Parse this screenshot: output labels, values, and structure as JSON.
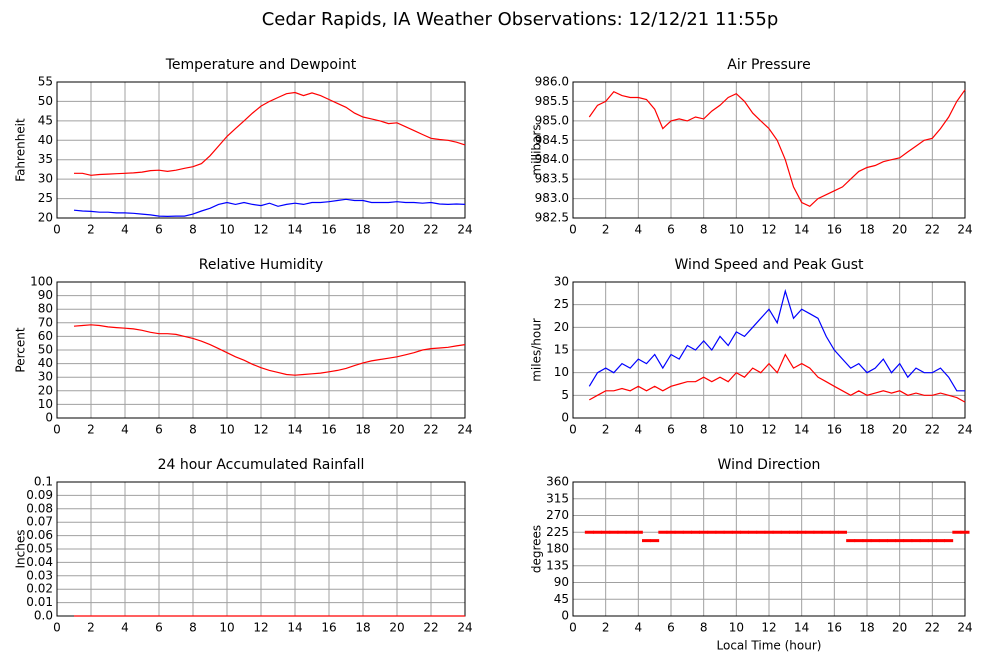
{
  "title": "Cedar Rapids, IA Weather Observations: 12/12/21 11:55p",
  "chart_data": [
    {
      "type": "line",
      "title": "Temperature and Dewpoint",
      "ylabel": "Fahrenheit",
      "xlim": [
        0,
        24
      ],
      "xticks": [
        0,
        2,
        4,
        6,
        8,
        10,
        12,
        14,
        16,
        18,
        20,
        22,
        24
      ],
      "ylim": [
        20,
        55
      ],
      "yticks": [
        20,
        25,
        30,
        35,
        40,
        45,
        50,
        55
      ],
      "grid": true,
      "x": [
        1,
        1.5,
        2,
        2.5,
        3,
        3.5,
        4,
        4.5,
        5,
        5.5,
        6,
        6.5,
        7,
        7.5,
        8,
        8.5,
        9,
        9.5,
        10,
        10.5,
        11,
        11.5,
        12,
        12.5,
        13,
        13.5,
        14,
        14.5,
        15,
        15.5,
        16,
        16.5,
        17,
        17.5,
        18,
        18.5,
        19,
        19.5,
        20,
        20.5,
        21,
        21.5,
        22,
        22.5,
        23,
        23.5,
        24
      ],
      "series": [
        {
          "color": "#ff0000",
          "values": [
            31.5,
            31.5,
            31,
            31.2,
            31.3,
            31.4,
            31.5,
            31.6,
            31.8,
            32.2,
            32.3,
            32,
            32.3,
            32.8,
            33.2,
            34,
            36,
            38.5,
            41,
            43,
            45,
            47,
            48.8,
            50,
            51,
            52,
            52.3,
            51.5,
            52.2,
            51.5,
            50.5,
            49.5,
            48.5,
            47,
            46,
            45.5,
            45,
            44.3,
            44.5,
            43.5,
            42.5,
            41.5,
            40.5,
            40.2,
            40,
            39.5,
            38.8
          ]
        },
        {
          "color": "#0000ff",
          "values": [
            22,
            21.8,
            21.7,
            21.5,
            21.5,
            21.3,
            21.3,
            21.2,
            21,
            20.8,
            20.5,
            20.4,
            20.5,
            20.5,
            21,
            21.8,
            22.5,
            23.5,
            24,
            23.5,
            24,
            23.5,
            23.2,
            23.8,
            23,
            23.5,
            23.8,
            23.5,
            24,
            24,
            24.2,
            24.5,
            24.8,
            24.5,
            24.5,
            24,
            24,
            24,
            24.2,
            24,
            24,
            23.8,
            24,
            23.6,
            23.5,
            23.6,
            23.5
          ]
        }
      ]
    },
    {
      "type": "line",
      "title": "Air Pressure",
      "ylabel": "millibars",
      "xlim": [
        0,
        24
      ],
      "xticks": [
        0,
        2,
        4,
        6,
        8,
        10,
        12,
        14,
        16,
        18,
        20,
        22,
        24
      ],
      "ylim": [
        982.5,
        986
      ],
      "yticks": [
        982.5,
        {
          "value": 983,
          "label": "983.0"
        },
        983.5,
        {
          "value": 984,
          "label": "984.0"
        },
        984.5,
        {
          "value": 985,
          "label": "985.0"
        },
        985.5,
        {
          "value": 986,
          "label": "986.0"
        }
      ],
      "grid": true,
      "x": [
        1,
        1.5,
        2,
        2.5,
        3,
        3.5,
        4,
        4.5,
        5,
        5.5,
        6,
        6.5,
        7,
        7.5,
        8,
        8.5,
        9,
        9.5,
        10,
        10.5,
        11,
        11.5,
        12,
        12.5,
        13,
        13.5,
        14,
        14.5,
        15,
        15.5,
        16,
        16.5,
        17,
        17.5,
        18,
        18.5,
        19,
        19.5,
        20,
        20.5,
        21,
        21.5,
        22,
        22.5,
        23,
        23.5,
        24
      ],
      "series": [
        {
          "color": "#ff0000",
          "values": [
            985.1,
            985.4,
            985.5,
            985.75,
            985.65,
            985.6,
            985.6,
            985.55,
            985.3,
            984.8,
            985.0,
            985.05,
            985.0,
            985.1,
            985.05,
            985.25,
            985.4,
            985.6,
            985.7,
            985.5,
            985.2,
            985.0,
            984.8,
            984.5,
            984.0,
            983.3,
            982.9,
            982.8,
            983.0,
            983.1,
            983.2,
            983.3,
            983.5,
            983.7,
            983.8,
            983.85,
            983.95,
            984.0,
            984.05,
            984.2,
            984.35,
            984.5,
            984.55,
            984.8,
            985.1,
            985.5,
            985.8
          ]
        }
      ]
    },
    {
      "type": "line",
      "title": "Relative Humidity",
      "ylabel": "Percent",
      "xlim": [
        0,
        24
      ],
      "xticks": [
        0,
        2,
        4,
        6,
        8,
        10,
        12,
        14,
        16,
        18,
        20,
        22,
        24
      ],
      "ylim": [
        0,
        100
      ],
      "yticks": [
        0,
        10,
        20,
        30,
        40,
        50,
        60,
        70,
        80,
        90,
        100
      ],
      "grid": true,
      "x": [
        1,
        1.5,
        2,
        2.5,
        3,
        3.5,
        4,
        4.5,
        5,
        5.5,
        6,
        6.5,
        7,
        7.5,
        8,
        8.5,
        9,
        9.5,
        10,
        10.5,
        11,
        11.5,
        12,
        12.5,
        13,
        13.5,
        14,
        14.5,
        15,
        15.5,
        16,
        16.5,
        17,
        17.5,
        18,
        18.5,
        19,
        19.5,
        20,
        20.5,
        21,
        21.5,
        22,
        22.5,
        23,
        23.5,
        24
      ],
      "series": [
        {
          "color": "#ff0000",
          "values": [
            67.5,
            68,
            68.5,
            68,
            67,
            66.5,
            66,
            65.5,
            64.5,
            63,
            62,
            62,
            61.5,
            60,
            58.5,
            56.5,
            54,
            51,
            48,
            45,
            42.5,
            39.5,
            37,
            35,
            33.5,
            32,
            31.5,
            32,
            32.5,
            33,
            34,
            35,
            36.5,
            38.5,
            40.5,
            42,
            43,
            44,
            45,
            46.5,
            48,
            50,
            51,
            51.5,
            52,
            53,
            54
          ]
        }
      ]
    },
    {
      "type": "line",
      "title": "Wind Speed and Peak Gust",
      "ylabel": "miles/hour",
      "xlim": [
        0,
        24
      ],
      "xticks": [
        0,
        2,
        4,
        6,
        8,
        10,
        12,
        14,
        16,
        18,
        20,
        22,
        24
      ],
      "ylim": [
        0,
        30
      ],
      "yticks": [
        0,
        5,
        10,
        15,
        20,
        25,
        30
      ],
      "grid": true,
      "x": [
        1,
        1.5,
        2,
        2.5,
        3,
        3.5,
        4,
        4.5,
        5,
        5.5,
        6,
        6.5,
        7,
        7.5,
        8,
        8.5,
        9,
        9.5,
        10,
        10.5,
        11,
        11.5,
        12,
        12.5,
        13,
        13.5,
        14,
        14.5,
        15,
        15.5,
        16,
        16.5,
        17,
        17.5,
        18,
        18.5,
        19,
        19.5,
        20,
        20.5,
        21,
        21.5,
        22,
        22.5,
        23,
        23.5,
        24
      ],
      "series": [
        {
          "color": "#0000ff",
          "values": [
            7,
            10,
            11,
            10,
            12,
            11,
            13,
            12,
            14,
            11,
            14,
            13,
            16,
            15,
            17,
            15,
            18,
            16,
            19,
            18,
            20,
            22,
            24,
            21,
            28,
            22,
            24,
            23,
            22,
            18,
            15,
            13,
            11,
            12,
            10,
            11,
            13,
            10,
            12,
            9,
            11,
            10,
            10,
            11,
            9,
            6,
            6
          ]
        },
        {
          "color": "#ff0000",
          "values": [
            4,
            5,
            6,
            6,
            6.5,
            6,
            7,
            6,
            7,
            6,
            7,
            7.5,
            8,
            8,
            9,
            8,
            9,
            8,
            10,
            9,
            11,
            10,
            12,
            10,
            14,
            11,
            12,
            11,
            9,
            8,
            7,
            6,
            5,
            6,
            5,
            5.5,
            6,
            5.5,
            6,
            5,
            5.5,
            5,
            5,
            5.5,
            5,
            4.5,
            3.5
          ]
        }
      ]
    },
    {
      "type": "line",
      "title": "24 hour Accumulated Rainfall",
      "ylabel": "Inches",
      "xlim": [
        0,
        24
      ],
      "xticks": [
        0,
        2,
        4,
        6,
        8,
        10,
        12,
        14,
        16,
        18,
        20,
        22,
        24
      ],
      "ylim": [
        0,
        0.1
      ],
      "yticks": [
        {
          "value": 0,
          "label": "0.0"
        },
        0.01,
        0.02,
        0.03,
        0.04,
        0.05,
        0.06,
        0.07,
        0.08,
        0.09,
        0.1
      ],
      "grid": true,
      "x": [
        1,
        1.5,
        2,
        2.5,
        3,
        3.5,
        4,
        4.5,
        5,
        5.5,
        6,
        6.5,
        7,
        7.5,
        8,
        8.5,
        9,
        9.5,
        10,
        10.5,
        11,
        11.5,
        12,
        12.5,
        13,
        13.5,
        14,
        14.5,
        15,
        15.5,
        16,
        16.5,
        17,
        17.5,
        18,
        18.5,
        19,
        19.5,
        20,
        20.5,
        21,
        21.5,
        22,
        22.5,
        23,
        23.5,
        24
      ],
      "series": [
        {
          "color": "#ff0000",
          "values": [
            0,
            0,
            0,
            0,
            0,
            0,
            0,
            0,
            0,
            0,
            0,
            0,
            0,
            0,
            0,
            0,
            0,
            0,
            0,
            0,
            0,
            0,
            0,
            0,
            0,
            0,
            0,
            0,
            0,
            0,
            0,
            0,
            0,
            0,
            0,
            0,
            0,
            0,
            0,
            0,
            0,
            0,
            0,
            0,
            0,
            0,
            0
          ]
        }
      ]
    },
    {
      "type": "scatter",
      "title": "Wind Direction",
      "ylabel": "degrees",
      "xlabel": "Local Time (hour)",
      "xlim": [
        0,
        24
      ],
      "xticks": [
        0,
        2,
        4,
        6,
        8,
        10,
        12,
        14,
        16,
        18,
        20,
        22,
        24
      ],
      "ylim": [
        0,
        360
      ],
      "yticks": [
        0,
        45,
        90,
        135,
        180,
        225,
        270,
        315,
        360
      ],
      "grid": true,
      "x": [
        1,
        1.5,
        2,
        2.5,
        3,
        3.5,
        4,
        4.5,
        5,
        5.5,
        6,
        6.5,
        7,
        7.5,
        8,
        8.5,
        9,
        9.5,
        10,
        10.5,
        11,
        11.5,
        12,
        12.5,
        13,
        13.5,
        14,
        14.5,
        15,
        15.5,
        16,
        16.5,
        17,
        17.5,
        18,
        18.5,
        19,
        19.5,
        20,
        20.5,
        21,
        21.5,
        22,
        22.5,
        23,
        23.5,
        24
      ],
      "series": [
        {
          "color": "#ff0000",
          "values": [
            225,
            225,
            225,
            225,
            225,
            225,
            225,
            202.5,
            202.5,
            225,
            225,
            225,
            225,
            225,
            225,
            225,
            225,
            225,
            225,
            225,
            225,
            225,
            225,
            225,
            225,
            225,
            225,
            225,
            225,
            225,
            225,
            225,
            202.5,
            202.5,
            202.5,
            202.5,
            202.5,
            202.5,
            202.5,
            202.5,
            202.5,
            202.5,
            202.5,
            202.5,
            202.5,
            225,
            225
          ]
        }
      ]
    }
  ]
}
